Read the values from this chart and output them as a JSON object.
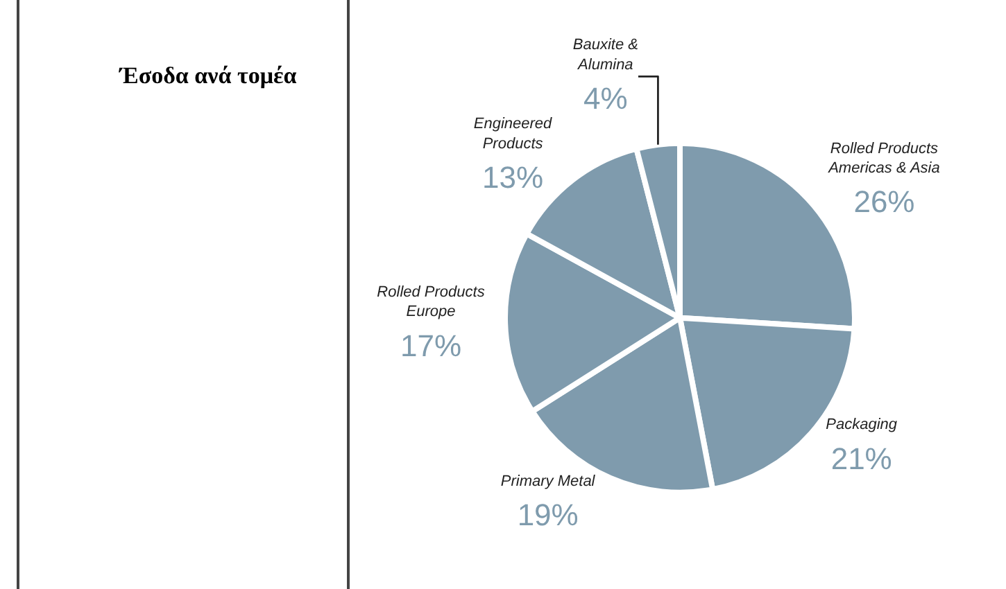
{
  "chart_data": {
    "type": "pie",
    "title": "Έσοδα ανά τομέα",
    "categories": [
      "Rolled Products Americas & Asia",
      "Packaging",
      "Primary Metal",
      "Rolled Products Europe",
      "Engineered Products",
      "Bauxite & Alumina"
    ],
    "values": [
      26,
      21,
      19,
      17,
      13,
      4
    ],
    "value_labels": [
      "26%",
      "21%",
      "19%",
      "17%",
      "13%",
      "4%"
    ],
    "colors": [
      "#7f9bad",
      "#7f9bad",
      "#7f9bad",
      "#7f9bad",
      "#7f9bad",
      "#7f9bad"
    ],
    "legend": false
  }
}
